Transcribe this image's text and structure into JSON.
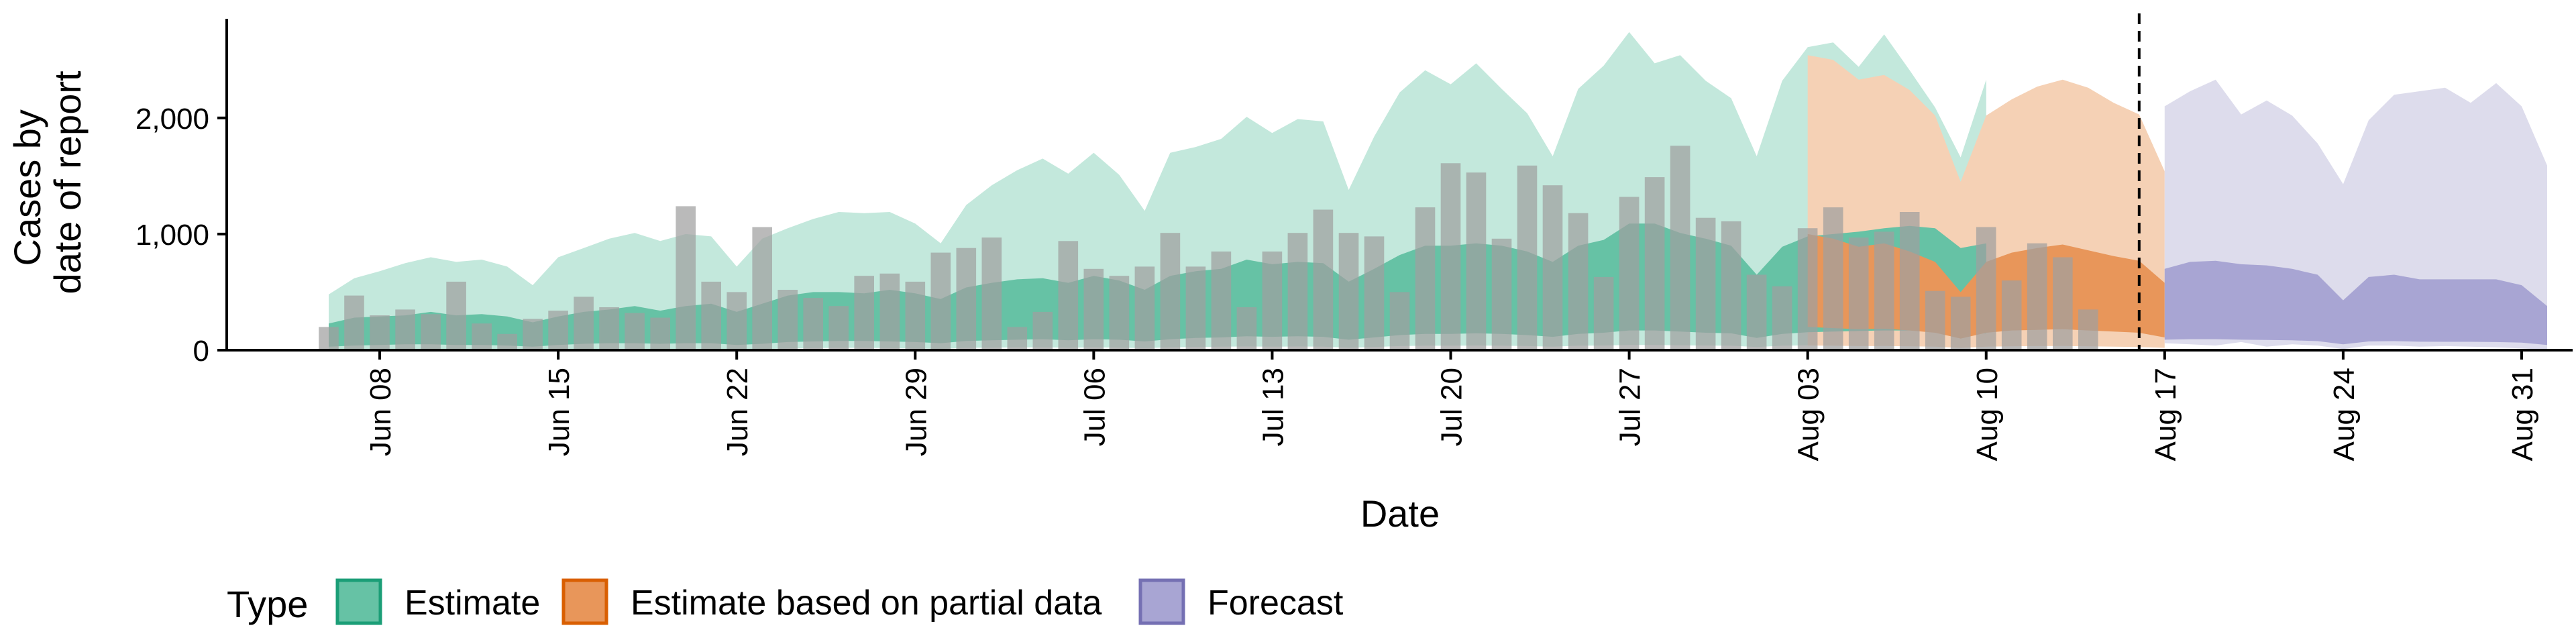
{
  "chart_data": {
    "type": "area",
    "xlabel": "Date",
    "ylabel": [
      "Cases by",
      "date of report"
    ],
    "ylim": [
      0,
      2900
    ],
    "xlim": [
      "2020-06-02",
      "2020-09-02"
    ],
    "y_ticks": [
      0,
      1000,
      2000
    ],
    "y_tick_labels": [
      "0",
      "1,000",
      "2,000"
    ],
    "x_ticks": [
      "2020-06-08",
      "2020-06-15",
      "2020-06-22",
      "2020-06-29",
      "2020-07-06",
      "2020-07-13",
      "2020-07-20",
      "2020-07-27",
      "2020-08-03",
      "2020-08-10",
      "2020-08-17",
      "2020-08-24",
      "2020-08-31"
    ],
    "x_tick_labels": [
      "Jun 08",
      "Jun 15",
      "Jun 22",
      "Jun 29",
      "Jul 06",
      "Jul 13",
      "Jul 20",
      "Jul 27",
      "Aug 03",
      "Aug 10",
      "Aug 17",
      "Aug 24",
      "Aug 31"
    ],
    "vline": "2020-08-16",
    "grid": false,
    "legend": {
      "position": "bottom",
      "title": "Type",
      "items": [
        {
          "label": "Estimate",
          "fill": "#66c2a5",
          "stroke": "#1b9e77"
        },
        {
          "label": "Estimate based on partial data",
          "fill": "#e8965a",
          "stroke": "#d95f02"
        },
        {
          "label": "Forecast",
          "fill": "#a8a5d3",
          "stroke": "#7570b3"
        }
      ]
    },
    "bars": {
      "start": "2020-06-06",
      "color": "#a0a0a0",
      "values": [
        200,
        470,
        300,
        350,
        310,
        590,
        230,
        140,
        270,
        340,
        460,
        370,
        320,
        280,
        1240,
        590,
        500,
        1060,
        520,
        450,
        380,
        640,
        660,
        590,
        840,
        880,
        970,
        200,
        330,
        940,
        700,
        640,
        720,
        1010,
        720,
        850,
        370,
        850,
        1010,
        1210,
        1010,
        980,
        500,
        1230,
        1610,
        1530,
        960,
        1590,
        1420,
        1180,
        630,
        1320,
        1490,
        1760,
        1140,
        1110,
        650,
        550,
        1050,
        1230,
        970,
        1020,
        1190,
        510,
        460,
        1060,
        600,
        920,
        800,
        350
      ]
    },
    "series": [
      {
        "name": "Estimate",
        "start": "2020-06-06",
        "inner_fill": "#66c2a5",
        "outer_fill": "#c3e8dc",
        "outer_upper": [
          480,
          620,
          680,
          750,
          800,
          760,
          780,
          720,
          560,
          800,
          880,
          960,
          1010,
          940,
          1000,
          980,
          720,
          960,
          1050,
          1130,
          1190,
          1180,
          1190,
          1090,
          920,
          1250,
          1420,
          1550,
          1650,
          1520,
          1700,
          1510,
          1200,
          1700,
          1750,
          1820,
          2010,
          1870,
          1990,
          1970,
          1380,
          1840,
          2220,
          2410,
          2290,
          2470,
          2250,
          2040,
          1670,
          2250,
          2450,
          2740,
          2470,
          2540,
          2320,
          2170,
          1670,
          2320,
          2610,
          2650,
          2440,
          2720,
          2410,
          2090,
          1660,
          2330
        ],
        "inner_upper": [
          230,
          280,
          290,
          300,
          330,
          300,
          310,
          290,
          240,
          290,
          330,
          350,
          380,
          340,
          380,
          400,
          330,
          400,
          470,
          500,
          500,
          490,
          520,
          490,
          440,
          540,
          580,
          610,
          620,
          580,
          640,
          600,
          520,
          640,
          680,
          700,
          780,
          740,
          760,
          750,
          590,
          700,
          820,
          900,
          900,
          920,
          900,
          850,
          760,
          900,
          950,
          1090,
          1090,
          1010,
          960,
          900,
          650,
          890,
          980,
          1000,
          1020,
          1050,
          1070,
          1050,
          880,
          920
        ],
        "inner_lower": [
          30,
          40,
          45,
          50,
          50,
          45,
          45,
          40,
          30,
          45,
          55,
          60,
          60,
          55,
          60,
          60,
          45,
          55,
          70,
          75,
          80,
          80,
          75,
          70,
          60,
          80,
          85,
          90,
          95,
          85,
          95,
          90,
          75,
          95,
          105,
          110,
          120,
          115,
          120,
          115,
          90,
          110,
          130,
          140,
          140,
          145,
          140,
          130,
          115,
          140,
          150,
          170,
          170,
          160,
          150,
          145,
          105,
          140,
          155,
          160,
          165,
          170,
          170,
          160,
          140,
          145
        ],
        "outer_lower": [
          0,
          5,
          8,
          10,
          10,
          8,
          8,
          5,
          0,
          8,
          10,
          12,
          12,
          10,
          12,
          12,
          8,
          10,
          15,
          18,
          20,
          20,
          18,
          15,
          12,
          20,
          22,
          25,
          25,
          22,
          25,
          22,
          18,
          25,
          28,
          30,
          32,
          30,
          32,
          30,
          22,
          28,
          35,
          38,
          38,
          40,
          38,
          35,
          30,
          38,
          40,
          45,
          45,
          42,
          40,
          38,
          28,
          38,
          42,
          45,
          45,
          48,
          48,
          45,
          38,
          40
        ]
      },
      {
        "name": "Estimate based on partial data",
        "start": "2020-08-03",
        "inner_fill": "#e8965a",
        "outer_fill": "#f5d1b5",
        "outer_upper": [
          2540,
          2500,
          2330,
          2370,
          2240,
          2020,
          1450,
          2020,
          2160,
          2270,
          2330,
          2260,
          2130,
          2030,
          1540
        ],
        "inner_upper": [
          1000,
          960,
          890,
          920,
          850,
          760,
          500,
          760,
          840,
          880,
          910,
          860,
          810,
          770,
          580
        ],
        "inner_lower": [
          200,
          190,
          180,
          185,
          170,
          150,
          100,
          150,
          170,
          175,
          180,
          170,
          160,
          150,
          110
        ],
        "outer_lower": [
          40,
          38,
          35,
          36,
          33,
          30,
          20,
          30,
          33,
          35,
          36,
          33,
          30,
          28,
          20
        ]
      },
      {
        "name": "Forecast",
        "start": "2020-08-17",
        "inner_fill": "#a8a5d3",
        "outer_fill": "#dddcec",
        "outer_upper": [
          2100,
          2230,
          2330,
          2030,
          2150,
          2020,
          1780,
          1430,
          1980,
          2200,
          2230,
          2260,
          2130,
          2300,
          2100,
          1590
        ],
        "inner_upper": [
          700,
          760,
          770,
          740,
          730,
          700,
          650,
          430,
          630,
          650,
          610,
          610,
          610,
          610,
          560,
          380
        ],
        "inner_lower": [
          90,
          95,
          95,
          90,
          88,
          85,
          78,
          50,
          75,
          78,
          73,
          72,
          72,
          70,
          65,
          45
        ],
        "outer_lower": [
          60,
          50,
          40,
          70,
          30,
          50,
          40,
          10,
          40,
          40,
          30,
          35,
          30,
          25,
          15,
          5
        ]
      }
    ]
  }
}
